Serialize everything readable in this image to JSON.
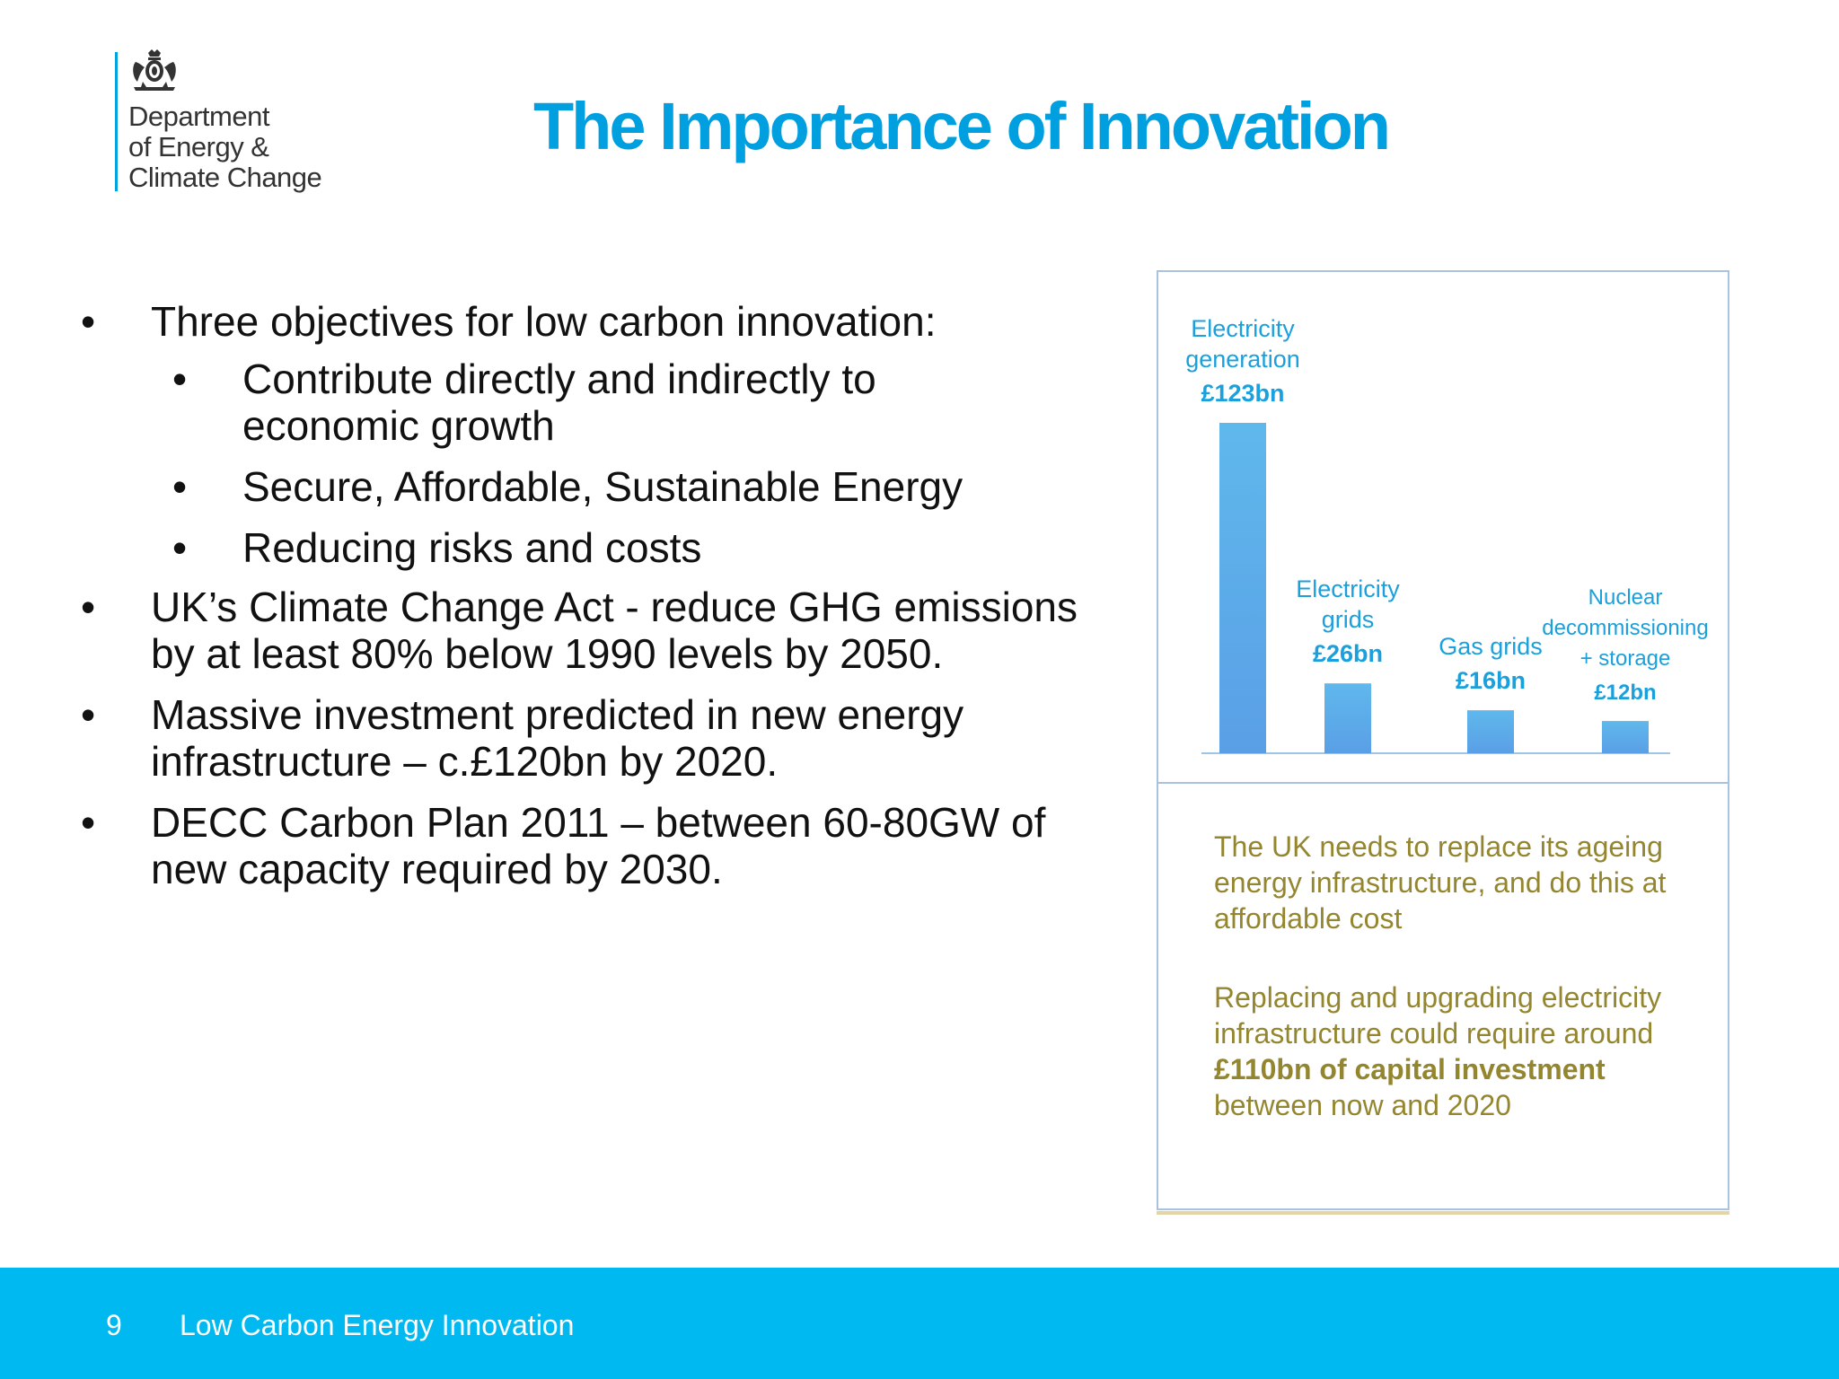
{
  "logo": {
    "line1": "Department",
    "line2": "of Energy &",
    "line3": "Climate Change"
  },
  "title": "The Importance of Innovation",
  "bullets": {
    "b1": "Three objectives for low carbon innovation:",
    "b1_sub1": "Contribute directly and indirectly to economic growth",
    "b1_sub2": "Secure, Affordable, Sustainable Energy",
    "b1_sub3": "Reducing risks and costs",
    "b2": "UK’s Climate Change Act - reduce GHG emissions by at least 80% below 1990 levels by 2050.",
    "b3": "Massive investment predicted in new energy infrastructure – c.£120bn by 2020.",
    "b4": "DECC Carbon Plan 2011 – between 60-80GW of new capacity required by 2030."
  },
  "chart_data": {
    "type": "bar",
    "categories": [
      "Electricity generation",
      "Electricity grids",
      "Gas grids",
      "Nuclear decommissioning + storage"
    ],
    "values": [
      123,
      26,
      16,
      12
    ],
    "value_labels": [
      "£123bn",
      "£26bn",
      "£16bn",
      "£12bn"
    ],
    "label_lines": [
      [
        "Electricity",
        "generation"
      ],
      [
        "Electricity",
        "grids"
      ],
      [
        "Gas grids"
      ],
      [
        "Nuclear",
        "decommissioning",
        "+  storage"
      ]
    ],
    "unit": "£bn",
    "title": "",
    "xlabel": "",
    "ylabel": "",
    "ylim": [
      0,
      123
    ],
    "grid": false,
    "colors": {
      "bar_top": "#5fb8ec",
      "bar_bottom": "#5a9fe6",
      "label": "#1aa0dc",
      "axis": "#9cc5e8"
    }
  },
  "panel_text": {
    "para1": "The UK needs to replace its ageing energy infrastructure, and do this at affordable cost",
    "para2_pre": "Replacing and upgrading electricity infrastructure could require around ",
    "para2_bold": "£110bn of capital investment",
    "para2_post": "  between now and 2020"
  },
  "footer": {
    "page_number": "9",
    "title": "Low Carbon Energy Innovation"
  },
  "colors": {
    "title": "#009fe0",
    "footer": "#00b9f0",
    "panel_text": "#94862e",
    "panel_border": "#a9c3de"
  }
}
